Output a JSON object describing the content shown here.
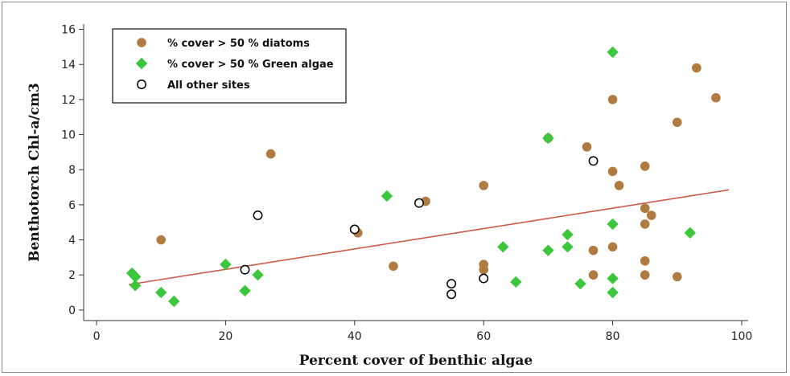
{
  "chart_data": {
    "type": "scatter",
    "xlabel": "Percent cover of benthic algae",
    "ylabel": "Benthotorch Chl-a/cm3",
    "xlim": [
      -2,
      101
    ],
    "ylim": [
      -0.6,
      16.3
    ],
    "xticks": [
      0,
      20,
      40,
      60,
      80,
      100
    ],
    "yticks": [
      0,
      2,
      4,
      6,
      8,
      10,
      12,
      14,
      16
    ],
    "grid": false,
    "legend_position": "top-left",
    "colors": {
      "diatoms": "#b07a40",
      "green": "#3cc63c",
      "other": "#000000",
      "trend": "#d05a4a"
    },
    "series": [
      {
        "name": "% cover > 50 % diatoms",
        "marker": "circle-filled",
        "points": [
          [
            10,
            4.0
          ],
          [
            27,
            8.9
          ],
          [
            40.5,
            4.4
          ],
          [
            46,
            2.5
          ],
          [
            51,
            6.2
          ],
          [
            60,
            7.1
          ],
          [
            60,
            2.6
          ],
          [
            60,
            2.3
          ],
          [
            70,
            9.8
          ],
          [
            76,
            9.3
          ],
          [
            77,
            3.4
          ],
          [
            77,
            2.0
          ],
          [
            80,
            12.0
          ],
          [
            80,
            7.9
          ],
          [
            80,
            3.6
          ],
          [
            81,
            7.1
          ],
          [
            85,
            8.2
          ],
          [
            85,
            5.8
          ],
          [
            85,
            4.9
          ],
          [
            85,
            2.8
          ],
          [
            85,
            2.0
          ],
          [
            86,
            5.4
          ],
          [
            90,
            10.7
          ],
          [
            90,
            1.9
          ],
          [
            93,
            13.8
          ],
          [
            96,
            12.1
          ]
        ]
      },
      {
        "name": "% cover > 50 % Green algae",
        "marker": "diamond-filled",
        "points": [
          [
            5.5,
            2.1
          ],
          [
            6,
            1.9
          ],
          [
            6,
            1.4
          ],
          [
            10,
            1.0
          ],
          [
            12,
            0.5
          ],
          [
            20,
            2.6
          ],
          [
            23,
            1.1
          ],
          [
            25,
            2.0
          ],
          [
            45,
            6.5
          ],
          [
            63,
            3.6
          ],
          [
            65,
            1.6
          ],
          [
            70,
            9.8
          ],
          [
            70,
            3.4
          ],
          [
            73,
            4.3
          ],
          [
            73,
            3.6
          ],
          [
            75,
            1.5
          ],
          [
            80,
            14.7
          ],
          [
            80,
            4.9
          ],
          [
            80,
            1.8
          ],
          [
            80,
            1.0
          ],
          [
            92,
            4.4
          ]
        ]
      },
      {
        "name": "All other sites",
        "marker": "circle-open",
        "points": [
          [
            23,
            2.3
          ],
          [
            25,
            5.4
          ],
          [
            40,
            4.6
          ],
          [
            50,
            6.1
          ],
          [
            55,
            1.5
          ],
          [
            55,
            0.9
          ],
          [
            60,
            1.8
          ],
          [
            77,
            8.5
          ]
        ]
      }
    ],
    "trendline": {
      "x": [
        5,
        98
      ],
      "y": [
        1.45,
        6.85
      ]
    }
  }
}
